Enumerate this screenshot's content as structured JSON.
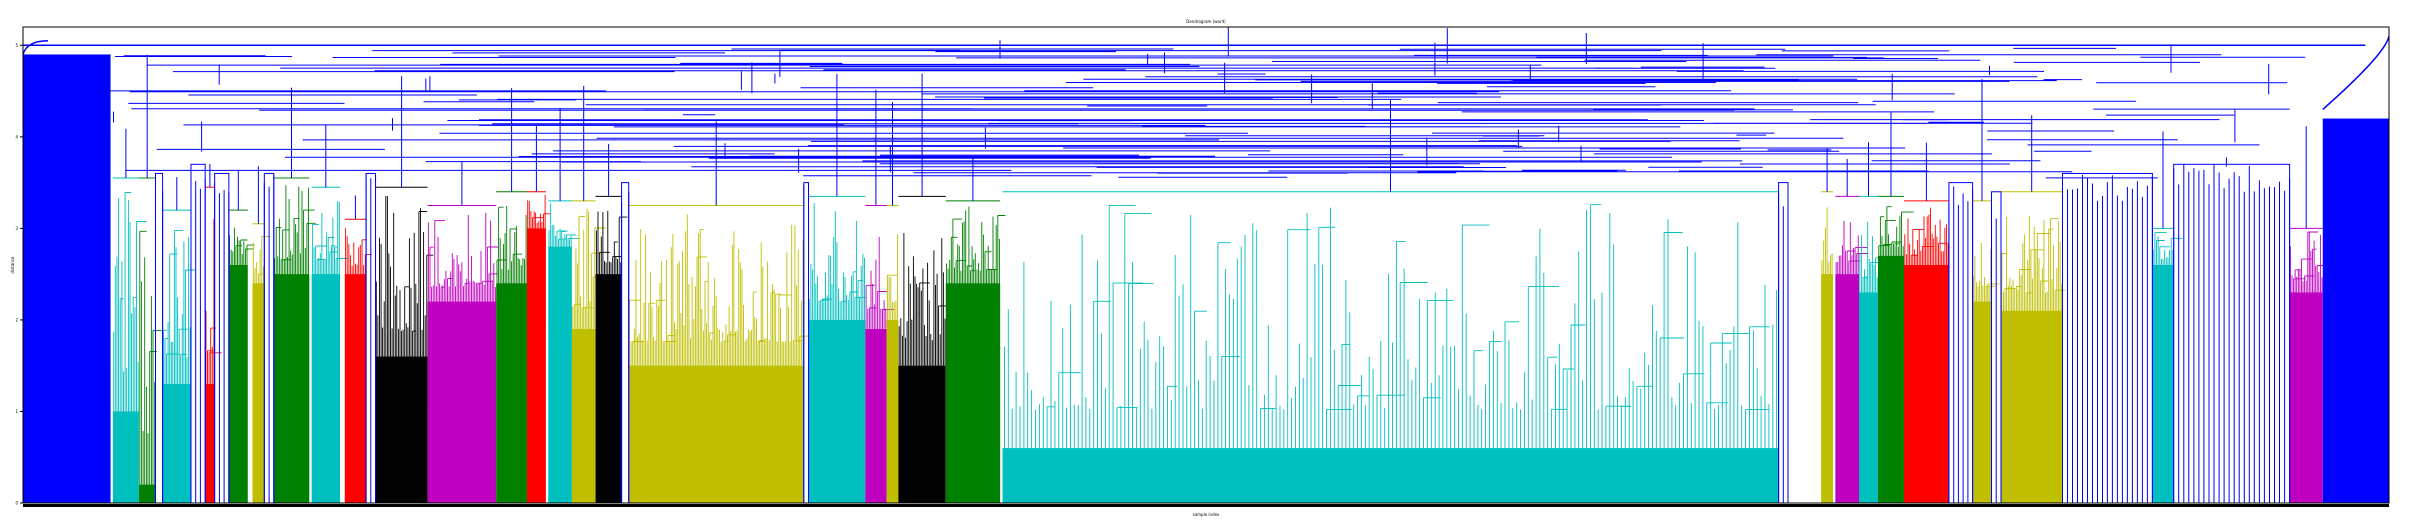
{
  "chart_data": {
    "type": "dendrogram",
    "title": "Dendrogram (ward)",
    "xlabel": "sample index",
    "ylabel": "distance",
    "ylim": [
      0,
      5.2
    ],
    "yticks": [
      "0",
      "1",
      "2",
      "3",
      "4",
      "5"
    ],
    "grid": false,
    "above_threshold_color": "#0000ff",
    "clusters": [
      {
        "color": "#00bfbf",
        "start": 0.038,
        "end": 0.049,
        "height": 3.55,
        "depth": 1.0
      },
      {
        "color": "#008000",
        "start": 0.049,
        "end": 0.056,
        "height": 3.55,
        "depth": 0.2
      },
      {
        "color": "#00bfbf",
        "start": 0.059,
        "end": 0.071,
        "height": 3.2,
        "depth": 1.3
      },
      {
        "color": "#ff0000",
        "start": 0.077,
        "end": 0.081,
        "height": 3.45,
        "depth": 1.3
      },
      {
        "color": "#008000",
        "start": 0.087,
        "end": 0.095,
        "height": 3.2,
        "depth": 2.6
      },
      {
        "color": "#bfbf00",
        "start": 0.097,
        "end": 0.102,
        "height": 3.05,
        "depth": 2.4
      },
      {
        "color": "#008000",
        "start": 0.106,
        "end": 0.121,
        "height": 3.55,
        "depth": 2.5
      },
      {
        "color": "#00bfbf",
        "start": 0.122,
        "end": 0.134,
        "height": 3.45,
        "depth": 2.5
      },
      {
        "color": "#ff0000",
        "start": 0.136,
        "end": 0.145,
        "height": 3.1,
        "depth": 2.5
      },
      {
        "color": "#000000",
        "start": 0.149,
        "end": 0.171,
        "height": 3.45,
        "depth": 1.6
      },
      {
        "color": "#bf00bf",
        "start": 0.171,
        "end": 0.2,
        "height": 3.25,
        "depth": 2.2
      },
      {
        "color": "#008000",
        "start": 0.2,
        "end": 0.213,
        "height": 3.4,
        "depth": 2.4
      },
      {
        "color": "#ff0000",
        "start": 0.213,
        "end": 0.221,
        "height": 3.4,
        "depth": 3.0
      },
      {
        "color": "#00bfbf",
        "start": 0.222,
        "end": 0.232,
        "height": 3.3,
        "depth": 2.8
      },
      {
        "color": "#bfbf00",
        "start": 0.232,
        "end": 0.242,
        "height": 3.3,
        "depth": 1.9
      },
      {
        "color": "#000000",
        "start": 0.242,
        "end": 0.253,
        "height": 3.35,
        "depth": 2.5
      },
      {
        "color": "#bfbf00",
        "start": 0.256,
        "end": 0.33,
        "height": 3.25,
        "depth": 1.5
      },
      {
        "color": "#00bfbf",
        "start": 0.332,
        "end": 0.356,
        "height": 3.35,
        "depth": 2.0
      },
      {
        "color": "#bf00bf",
        "start": 0.356,
        "end": 0.365,
        "height": 3.25,
        "depth": 1.9
      },
      {
        "color": "#bfbf00",
        "start": 0.365,
        "end": 0.37,
        "height": 3.25,
        "depth": 2.0
      },
      {
        "color": "#000000",
        "start": 0.37,
        "end": 0.39,
        "height": 3.35,
        "depth": 1.5
      },
      {
        "color": "#008000",
        "start": 0.39,
        "end": 0.413,
        "height": 3.3,
        "depth": 2.4
      },
      {
        "color": "#00bfbf",
        "start": 0.414,
        "end": 0.742,
        "height": 3.4,
        "depth": 0.6
      },
      {
        "color": "#bfbf00",
        "start": 0.76,
        "end": 0.765,
        "height": 3.4,
        "depth": 2.5
      },
      {
        "color": "#bf00bf",
        "start": 0.766,
        "end": 0.776,
        "height": 3.35,
        "depth": 2.5
      },
      {
        "color": "#00bfbf",
        "start": 0.776,
        "end": 0.784,
        "height": 3.35,
        "depth": 2.3
      },
      {
        "color": "#008000",
        "start": 0.784,
        "end": 0.795,
        "height": 3.35,
        "depth": 2.7
      },
      {
        "color": "#ff0000",
        "start": 0.795,
        "end": 0.814,
        "height": 3.3,
        "depth": 2.6
      },
      {
        "color": "#bfbf00",
        "start": 0.824,
        "end": 0.832,
        "height": 3.3,
        "depth": 2.2
      },
      {
        "color": "#bfbf00",
        "start": 0.836,
        "end": 0.862,
        "height": 3.4,
        "depth": 2.1
      },
      {
        "color": "#00bfbf",
        "start": 0.9,
        "end": 0.909,
        "height": 3.0,
        "depth": 2.6
      },
      {
        "color": "#bf00bf",
        "start": 0.958,
        "end": 0.972,
        "height": 3.0,
        "depth": 2.3
      }
    ]
  }
}
